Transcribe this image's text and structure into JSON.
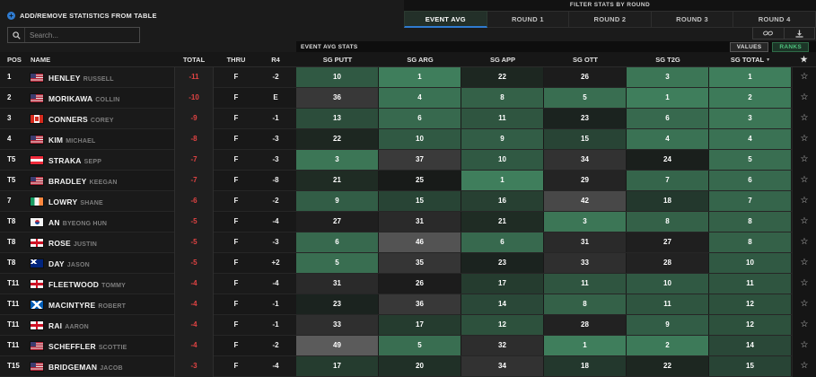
{
  "controls": {
    "add_remove_label": "ADD/REMOVE STATISTICS FROM TABLE",
    "add_icon_glyph": "+",
    "search_placeholder": "Search...",
    "filter_bar_label": "FILTER STATS BY ROUND",
    "tabs": [
      {
        "label": "EVENT AVG",
        "active": true
      },
      {
        "label": "ROUND 1",
        "active": false
      },
      {
        "label": "ROUND 2",
        "active": false
      },
      {
        "label": "ROUND 3",
        "active": false
      },
      {
        "label": "ROUND 4",
        "active": false
      }
    ],
    "stats_bar_label": "EVENT AVG STATS",
    "values_label": "VALUES",
    "ranks_label": "RANKS",
    "ranks_active": true
  },
  "colors": {
    "accent_blue": "#2f7bd0",
    "total_red": "#e04343",
    "ranks_green_text": "#4fc27e",
    "rank_best_green": "#3f7e5c",
    "rank_mid_dark": "#181b19",
    "rank_worst_gray": "#5e5e5e"
  },
  "table": {
    "left_headers": [
      "POS",
      "NAME",
      "TOTAL",
      "THRU",
      "R4"
    ],
    "stat_headers": [
      "SG PUTT",
      "SG ARG",
      "SG APP",
      "SG OTT",
      "SG T2G",
      "SG TOTAL"
    ],
    "sort_column": "SG TOTAL",
    "sort_icon": "▼",
    "star_header_glyph": "★",
    "row_star_glyph": "☆",
    "rows": [
      {
        "pos": "1",
        "last": "HENLEY",
        "first": "RUSSELL",
        "flag": "us",
        "total": "-11",
        "thru": "F",
        "r4": "-2",
        "stats": [
          10,
          1,
          22,
          26,
          3,
          1
        ]
      },
      {
        "pos": "2",
        "last": "MORIKAWA",
        "first": "COLLIN",
        "flag": "us",
        "total": "-10",
        "thru": "F",
        "r4": "E",
        "stats": [
          36,
          4,
          8,
          5,
          1,
          2
        ]
      },
      {
        "pos": "3",
        "last": "CONNERS",
        "first": "COREY",
        "flag": "ca",
        "total": "-9",
        "thru": "F",
        "r4": "-1",
        "stats": [
          13,
          6,
          11,
          23,
          6,
          3
        ]
      },
      {
        "pos": "4",
        "last": "KIM",
        "first": "MICHAEL",
        "flag": "us",
        "total": "-8",
        "thru": "F",
        "r4": "-3",
        "stats": [
          22,
          10,
          9,
          15,
          4,
          4
        ]
      },
      {
        "pos": "T5",
        "last": "STRAKA",
        "first": "SEPP",
        "flag": "at",
        "total": "-7",
        "thru": "F",
        "r4": "-3",
        "stats": [
          3,
          37,
          10,
          34,
          24,
          5
        ]
      },
      {
        "pos": "T5",
        "last": "BRADLEY",
        "first": "KEEGAN",
        "flag": "us",
        "total": "-7",
        "thru": "F",
        "r4": "-8",
        "stats": [
          21,
          25,
          1,
          29,
          7,
          6
        ]
      },
      {
        "pos": "7",
        "last": "LOWRY",
        "first": "SHANE",
        "flag": "ie",
        "total": "-6",
        "thru": "F",
        "r4": "-2",
        "stats": [
          9,
          15,
          16,
          42,
          18,
          7
        ]
      },
      {
        "pos": "T8",
        "last": "AN",
        "first": "BYEONG HUN",
        "flag": "kr",
        "total": "-5",
        "thru": "F",
        "r4": "-4",
        "stats": [
          27,
          31,
          21,
          3,
          8,
          8
        ]
      },
      {
        "pos": "T8",
        "last": "ROSE",
        "first": "JUSTIN",
        "flag": "en",
        "total": "-5",
        "thru": "F",
        "r4": "-3",
        "stats": [
          6,
          46,
          6,
          31,
          27,
          8
        ]
      },
      {
        "pos": "T8",
        "last": "DAY",
        "first": "JASON",
        "flag": "au",
        "total": "-5",
        "thru": "F",
        "r4": "+2",
        "stats": [
          5,
          35,
          23,
          33,
          28,
          10
        ]
      },
      {
        "pos": "T11",
        "last": "FLEETWOOD",
        "first": "TOMMY",
        "flag": "en",
        "total": "-4",
        "thru": "F",
        "r4": "-4",
        "stats": [
          31,
          26,
          17,
          11,
          10,
          11
        ]
      },
      {
        "pos": "T11",
        "last": "MACINTYRE",
        "first": "ROBERT",
        "flag": "sct",
        "total": "-4",
        "thru": "F",
        "r4": "-1",
        "stats": [
          23,
          36,
          14,
          8,
          11,
          12
        ]
      },
      {
        "pos": "T11",
        "last": "RAI",
        "first": "AARON",
        "flag": "en",
        "total": "-4",
        "thru": "F",
        "r4": "-1",
        "stats": [
          33,
          17,
          12,
          28,
          9,
          12
        ]
      },
      {
        "pos": "T11",
        "last": "SCHEFFLER",
        "first": "SCOTTIE",
        "flag": "us",
        "total": "-4",
        "thru": "F",
        "r4": "-2",
        "stats": [
          49,
          5,
          32,
          1,
          2,
          14
        ]
      },
      {
        "pos": "T15",
        "last": "BRIDGEMAN",
        "first": "JACOB",
        "flag": "us",
        "total": "-3",
        "thru": "F",
        "r4": "-4",
        "stats": [
          17,
          20,
          34,
          18,
          22,
          15
        ]
      }
    ]
  }
}
